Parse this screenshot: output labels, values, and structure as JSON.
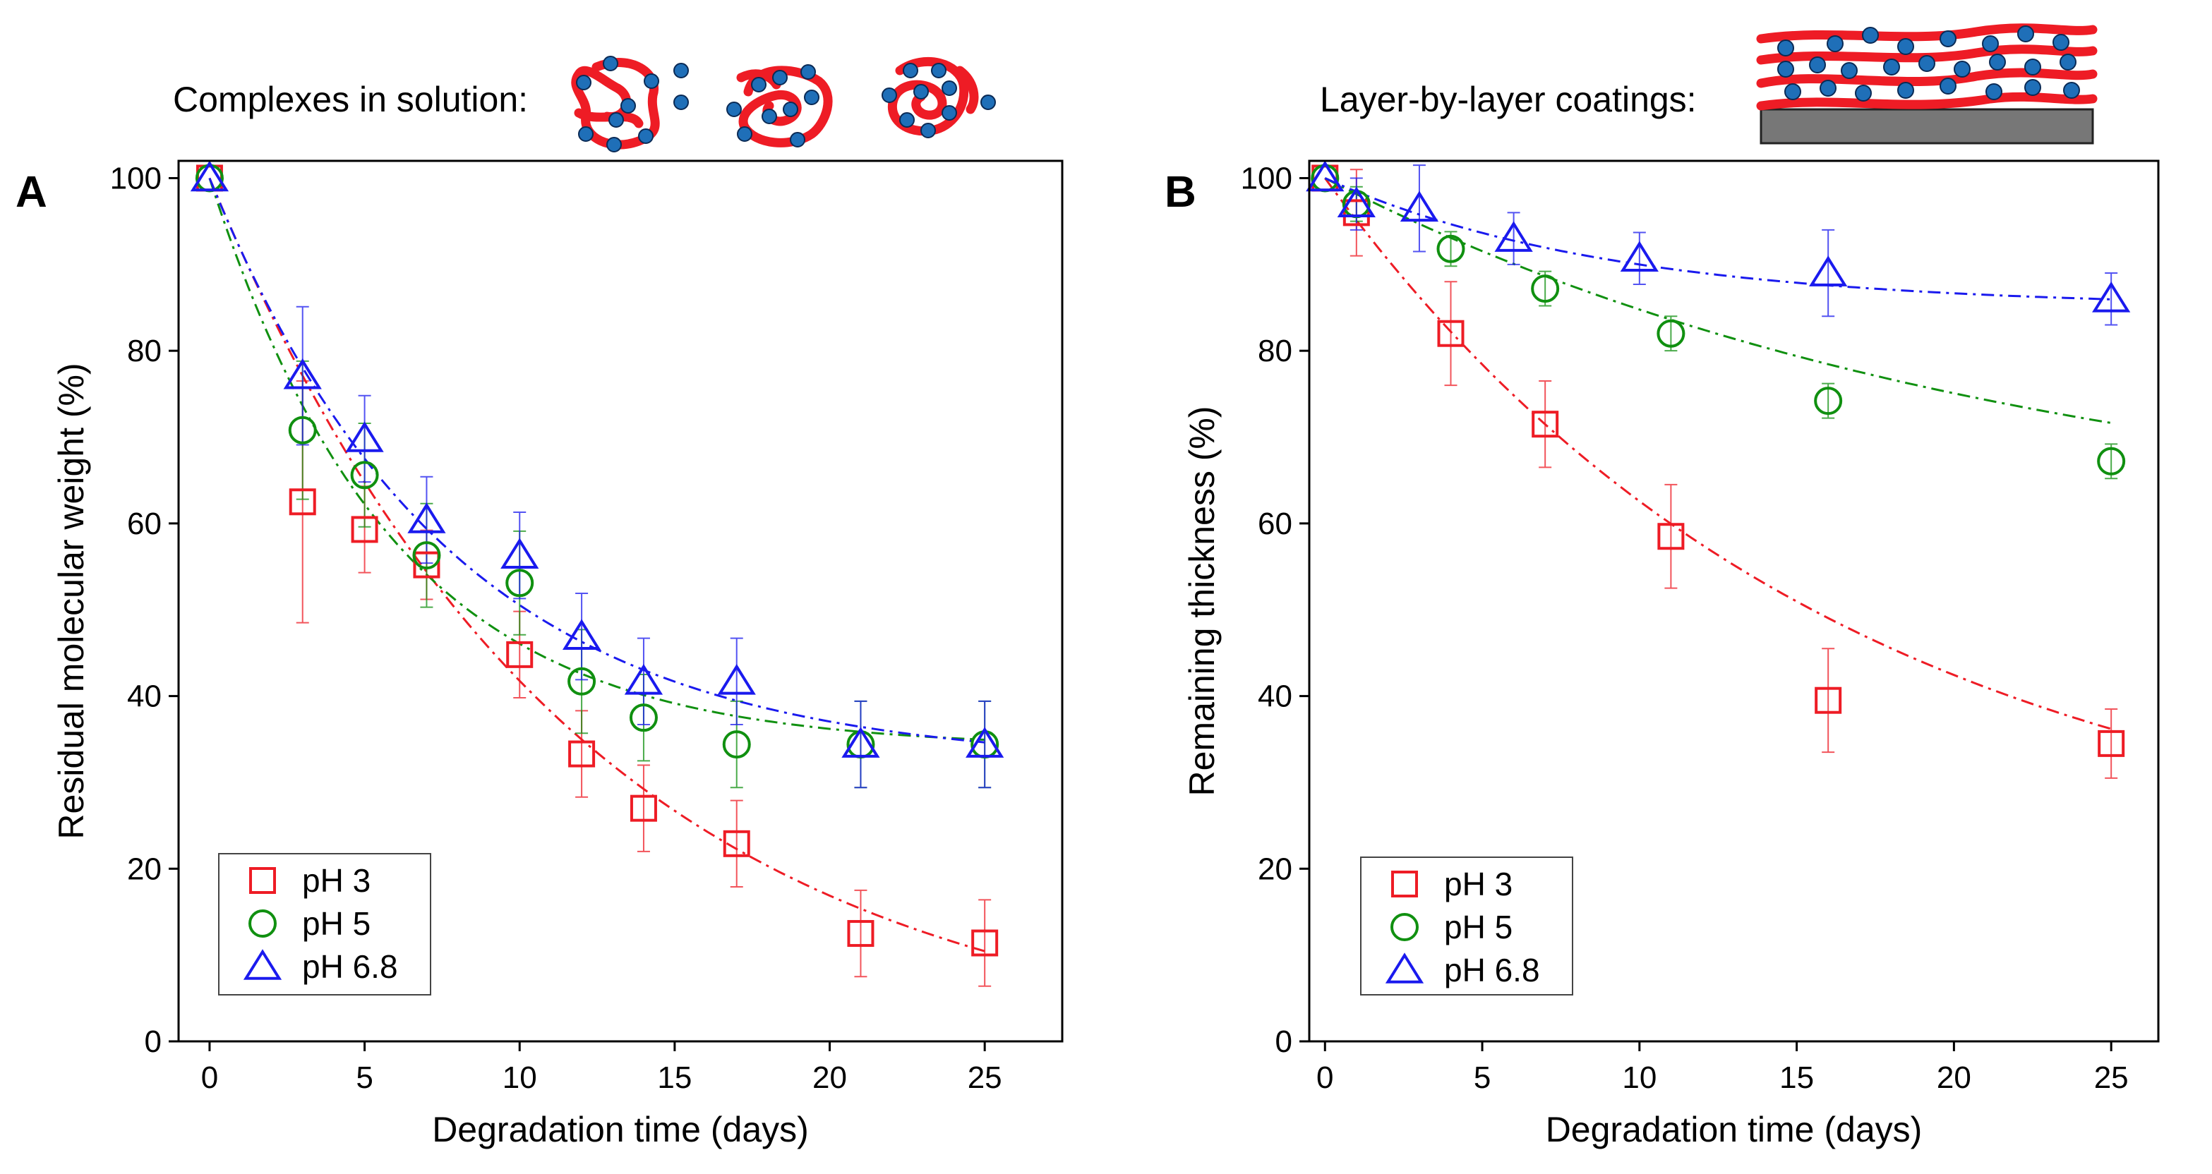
{
  "colors": {
    "pH 3": "#ee1c25",
    "pH 5": "#109010",
    "pH 6.8": "#1a1aee",
    "polymer": "#ee1c25",
    "particle": "#1f6fb8",
    "substrate": "#777777"
  },
  "chart_data": [
    {
      "type": "scatter",
      "panel_label": "A",
      "title": "Complexes in solution:",
      "xlabel": "Degradation time (days)",
      "ylabel": "Residual molecular weight (%)",
      "xlim": [
        -1,
        27.5
      ],
      "ylim": [
        0,
        102
      ],
      "xticks": [
        0,
        5,
        10,
        15,
        20,
        25
      ],
      "yticks": [
        0,
        20,
        40,
        60,
        80,
        100
      ],
      "grid": false,
      "legend_position": "bottom-left",
      "series": [
        {
          "name": "pH 3",
          "marker": "square",
          "fit": "dash-dot exponential decay",
          "x": [
            0,
            3,
            5,
            7,
            10,
            12,
            14,
            17,
            21,
            25
          ],
          "y": [
            100,
            62.5,
            59.3,
            55.2,
            44.8,
            33.3,
            27.0,
            22.9,
            12.5,
            11.4
          ],
          "err": [
            0,
            14,
            5,
            4,
            5,
            5,
            5,
            5,
            5,
            5
          ],
          "fit_params": {
            "a": 101.7,
            "b": 0.085,
            "c": -1.7
          }
        },
        {
          "name": "pH 5",
          "marker": "circle",
          "fit": "dash-dot exponential decay",
          "x": [
            0,
            3,
            5,
            7,
            10,
            12,
            14,
            17,
            21,
            25
          ],
          "y": [
            100,
            70.8,
            65.6,
            56.3,
            53.1,
            41.7,
            37.5,
            34.4,
            34.4,
            34.4
          ],
          "err": [
            0,
            8,
            6,
            6,
            6,
            6,
            5,
            5,
            5,
            5
          ],
          "fit_params": {
            "a": 66.0,
            "b": 0.17,
            "c": 34.0
          }
        },
        {
          "name": "pH 6.8",
          "marker": "triangle",
          "fit": "dash-dot exponential decay",
          "x": [
            0,
            3,
            5,
            7,
            10,
            12,
            14,
            17,
            21,
            25
          ],
          "y": [
            100,
            77.1,
            69.8,
            60.4,
            56.3,
            46.9,
            41.7,
            41.7,
            34.4,
            34.4
          ],
          "err": [
            0,
            8,
            5,
            5,
            5,
            5,
            5,
            5,
            5,
            5
          ],
          "fit_params": {
            "a": 68.0,
            "b": 0.13,
            "c": 32.0
          }
        }
      ]
    },
    {
      "type": "scatter",
      "panel_label": "B",
      "title": "Layer-by-layer coatings:",
      "xlabel": "Degradation time (days)",
      "ylabel": "Remaining thickness (%)",
      "xlim": [
        -0.5,
        26.5
      ],
      "ylim": [
        0,
        102
      ],
      "xticks": [
        0,
        5,
        10,
        15,
        20,
        25
      ],
      "yticks": [
        0,
        20,
        40,
        60,
        80,
        100
      ],
      "grid": false,
      "legend_position": "bottom-left",
      "series": [
        {
          "name": "pH 3",
          "marker": "square",
          "fit": "dash-dot exponential decay",
          "x": [
            0,
            1,
            4,
            7,
            11,
            16,
            25
          ],
          "y": [
            100,
            96,
            82,
            71.5,
            58.5,
            39.5,
            34.5
          ],
          "err": [
            0,
            5,
            6,
            5,
            6,
            6,
            4
          ],
          "fit_params": {
            "a": 81.0,
            "b": 0.062,
            "c": 19.0
          }
        },
        {
          "name": "pH 5",
          "marker": "circle",
          "fit": "dash-dot exponential decay",
          "x": [
            0,
            1,
            4,
            7,
            11,
            16,
            25
          ],
          "y": [
            100,
            97,
            91.8,
            87.2,
            82,
            74.2,
            67.2
          ],
          "err": [
            0,
            2,
            2,
            2,
            2,
            2,
            2
          ],
          "fit_params": {
            "a": 42.0,
            "b": 0.045,
            "c": 58.0
          }
        },
        {
          "name": "pH 6.8",
          "marker": "triangle",
          "fit": "dash-dot exponential decay",
          "x": [
            0,
            1,
            3,
            6,
            10,
            16,
            25
          ],
          "y": [
            100,
            97,
            96.5,
            93,
            90.7,
            89,
            86
          ],
          "err": [
            0,
            3,
            5,
            3,
            3,
            5,
            3
          ],
          "fit_params": {
            "a": 15.0,
            "b": 0.11,
            "c": 85.0
          }
        }
      ]
    }
  ]
}
